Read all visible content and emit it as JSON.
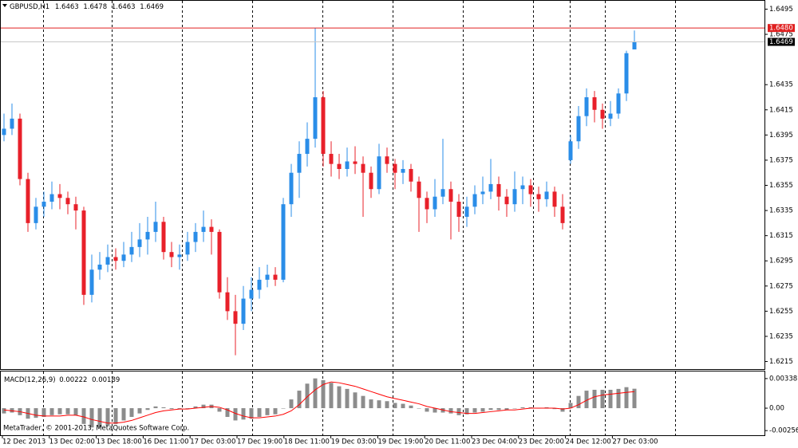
{
  "chart_data": [
    {
      "type": "candlestick",
      "symbol": "GBPUSD,H1",
      "ohlc": [
        1.6463,
        1.6478,
        1.6463,
        1.6469
      ],
      "up_color": "#2a8de8",
      "down_color": "#e8202a",
      "ylim": [
        1.6209,
        1.6501
      ],
      "yticks": [
        1.6495,
        1.6475,
        1.6435,
        1.6415,
        1.6395,
        1.6375,
        1.6355,
        1.6335,
        1.6315,
        1.6295,
        1.6275,
        1.6255,
        1.6235,
        1.6215
      ],
      "grid": false,
      "ask": {
        "value": 1.648,
        "label": "1.6480"
      },
      "ask_color": "#e02020",
      "bid": 1.6469,
      "bid_color": "#c8c8c8",
      "candles": [
        [
          1.6395,
          1.6412,
          1.639,
          1.64
        ],
        [
          1.64,
          1.642,
          1.6395,
          1.6408
        ],
        [
          1.6408,
          1.6412,
          1.6355,
          1.636
        ],
        [
          1.636,
          1.6365,
          1.6318,
          1.6325
        ],
        [
          1.6325,
          1.6345,
          1.632,
          1.6338
        ],
        [
          1.6338,
          1.635,
          1.633,
          1.6342
        ],
        [
          1.6342,
          1.6358,
          1.6336,
          1.6348
        ],
        [
          1.6348,
          1.6356,
          1.6336,
          1.6345
        ],
        [
          1.6345,
          1.635,
          1.6332,
          1.634
        ],
        [
          1.634,
          1.6346,
          1.632,
          1.6335
        ],
        [
          1.6335,
          1.6338,
          1.626,
          1.6268
        ],
        [
          1.6268,
          1.63,
          1.6262,
          1.6288
        ],
        [
          1.6288,
          1.6302,
          1.628,
          1.6292
        ],
        [
          1.6292,
          1.6308,
          1.6286,
          1.6298
        ],
        [
          1.6298,
          1.6305,
          1.6288,
          1.6295
        ],
        [
          1.6295,
          1.631,
          1.629,
          1.63
        ],
        [
          1.63,
          1.6318,
          1.6294,
          1.6306
        ],
        [
          1.6306,
          1.6325,
          1.6298,
          1.6312
        ],
        [
          1.6312,
          1.633,
          1.63,
          1.6318
        ],
        [
          1.6318,
          1.6342,
          1.631,
          1.6326
        ],
        [
          1.6326,
          1.633,
          1.6296,
          1.6302
        ],
        [
          1.6302,
          1.631,
          1.629,
          1.6298
        ],
        [
          1.6298,
          1.6308,
          1.6288,
          1.63
        ],
        [
          1.63,
          1.6318,
          1.6295,
          1.631
        ],
        [
          1.631,
          1.6325,
          1.6302,
          1.6318
        ],
        [
          1.6318,
          1.6335,
          1.631,
          1.6322
        ],
        [
          1.6322,
          1.6328,
          1.63,
          1.6318
        ],
        [
          1.6318,
          1.632,
          1.6265,
          1.627
        ],
        [
          1.627,
          1.6282,
          1.6248,
          1.6255
        ],
        [
          1.6255,
          1.6268,
          1.622,
          1.6245
        ],
        [
          1.6245,
          1.6275,
          1.624,
          1.6265
        ],
        [
          1.6265,
          1.6282,
          1.6255,
          1.6272
        ],
        [
          1.6272,
          1.629,
          1.6265,
          1.628
        ],
        [
          1.628,
          1.6292,
          1.6274,
          1.6284
        ],
        [
          1.6284,
          1.629,
          1.6275,
          1.628
        ],
        [
          1.628,
          1.6345,
          1.6278,
          1.634
        ],
        [
          1.634,
          1.6372,
          1.633,
          1.6365
        ],
        [
          1.6365,
          1.639,
          1.6345,
          1.638
        ],
        [
          1.638,
          1.6405,
          1.637,
          1.6392
        ],
        [
          1.6392,
          1.648,
          1.6385,
          1.6425
        ],
        [
          1.6425,
          1.643,
          1.637,
          1.638
        ],
        [
          1.638,
          1.639,
          1.6362,
          1.6372
        ],
        [
          1.6372,
          1.638,
          1.636,
          1.6368
        ],
        [
          1.6368,
          1.6385,
          1.6362,
          1.6374
        ],
        [
          1.6374,
          1.6386,
          1.6364,
          1.6372
        ],
        [
          1.6372,
          1.6378,
          1.633,
          1.6365
        ],
        [
          1.6365,
          1.637,
          1.6345,
          1.6352
        ],
        [
          1.6352,
          1.6388,
          1.6348,
          1.6378
        ],
        [
          1.6378,
          1.6385,
          1.6365,
          1.6372
        ],
        [
          1.6372,
          1.6376,
          1.6352,
          1.6365
        ],
        [
          1.6365,
          1.6375,
          1.6356,
          1.6368
        ],
        [
          1.6368,
          1.6372,
          1.635,
          1.6358
        ],
        [
          1.6358,
          1.6362,
          1.6318,
          1.6345
        ],
        [
          1.6345,
          1.635,
          1.6325,
          1.6336
        ],
        [
          1.6336,
          1.636,
          1.633,
          1.6346
        ],
        [
          1.6346,
          1.6392,
          1.634,
          1.6352
        ],
        [
          1.6352,
          1.6358,
          1.6312,
          1.6342
        ],
        [
          1.6342,
          1.6348,
          1.6318,
          1.633
        ],
        [
          1.633,
          1.6346,
          1.6322,
          1.6338
        ],
        [
          1.6338,
          1.6355,
          1.6332,
          1.6348
        ],
        [
          1.6348,
          1.6362,
          1.634,
          1.635
        ],
        [
          1.635,
          1.6376,
          1.6344,
          1.6356
        ],
        [
          1.6356,
          1.6362,
          1.6335,
          1.6346
        ],
        [
          1.6346,
          1.6352,
          1.633,
          1.634
        ],
        [
          1.634,
          1.6366,
          1.6334,
          1.6352
        ],
        [
          1.6352,
          1.6362,
          1.634,
          1.6355
        ],
        [
          1.6355,
          1.636,
          1.6338,
          1.6348
        ],
        [
          1.6348,
          1.6354,
          1.6334,
          1.6344
        ],
        [
          1.6344,
          1.6358,
          1.6338,
          1.635
        ],
        [
          1.635,
          1.6354,
          1.633,
          1.6338
        ],
        [
          1.6338,
          1.6348,
          1.632,
          1.6325
        ],
        [
          1.6375,
          1.6395,
          1.6372,
          1.639
        ],
        [
          1.639,
          1.6418,
          1.6384,
          1.641
        ],
        [
          1.641,
          1.6432,
          1.6402,
          1.6425
        ],
        [
          1.6425,
          1.643,
          1.6405,
          1.6415
        ],
        [
          1.6415,
          1.642,
          1.64,
          1.6408
        ],
        [
          1.6408,
          1.6422,
          1.6402,
          1.6412
        ],
        [
          1.6412,
          1.6432,
          1.6408,
          1.6428
        ],
        [
          1.6428,
          1.6462,
          1.6422,
          1.646
        ],
        [
          1.6463,
          1.6478,
          1.6463,
          1.6469
        ]
      ]
    },
    {
      "type": "macd",
      "title": "MACD(12,26,9)",
      "current": [
        0.00222,
        0.00189
      ],
      "ylim": [
        -0.003,
        0.0041
      ],
      "yticks": [
        0.00338,
        {
          "value": 0,
          "label": "0.00"
        },
        -0.00256
      ],
      "histogram": {
        "color": "#8c8c8c",
        "values": [
          -0.0006,
          -0.0005,
          -0.0008,
          -0.0012,
          -0.0011,
          -0.001,
          -0.0008,
          -0.0007,
          -0.0007,
          -0.0008,
          -0.0018,
          -0.0022,
          -0.0022,
          -0.002,
          -0.0018,
          -0.0014,
          -0.001,
          -0.0006,
          -0.0002,
          0.0002,
          0.0001,
          -0.0001,
          -0.0001,
          0.0,
          0.0002,
          0.0004,
          0.0004,
          -0.0004,
          -0.001,
          -0.0014,
          -0.0013,
          -0.0012,
          -0.001,
          -0.0008,
          -0.0007,
          0.0,
          0.001,
          0.002,
          0.0028,
          0.0034,
          0.0032,
          0.0029,
          0.0025,
          0.0022,
          0.0018,
          0.0014,
          0.001,
          0.0009,
          0.0008,
          0.0006,
          0.0005,
          0.0003,
          0.0,
          -0.0004,
          -0.0005,
          -0.0005,
          -0.0006,
          -0.0008,
          -0.0007,
          -0.0005,
          -0.0004,
          -0.0002,
          -0.0002,
          -0.0002,
          0.0,
          0.0001,
          0.0001,
          0.0,
          0.0001,
          -0.0001,
          -0.0004,
          0.0006,
          0.0014,
          0.002,
          0.0021,
          0.0021,
          0.0021,
          0.0022,
          0.0024,
          0.00222
        ]
      },
      "signal": {
        "color": "#ff0000",
        "values": [
          -0.0002,
          -0.0003,
          -0.0004,
          -0.0006,
          -0.0008,
          -0.0009,
          -0.0009,
          -0.0009,
          -0.0008,
          -0.0008,
          -0.001,
          -0.0013,
          -0.0015,
          -0.0017,
          -0.0017,
          -0.0016,
          -0.0014,
          -0.0011,
          -0.0008,
          -0.0005,
          -0.0003,
          -0.0002,
          -0.0001,
          -0.0001,
          0.0,
          0.0001,
          0.0002,
          0.0001,
          -0.0002,
          -0.0006,
          -0.0009,
          -0.0011,
          -0.0011,
          -0.001,
          -0.0009,
          -0.0007,
          -0.0003,
          0.0004,
          0.0013,
          0.0021,
          0.0027,
          0.003,
          0.0029,
          0.0027,
          0.0025,
          0.0022,
          0.0019,
          0.0016,
          0.0013,
          0.0011,
          0.0009,
          0.0007,
          0.0005,
          0.0002,
          0.0,
          -0.0002,
          -0.0004,
          -0.0005,
          -0.0006,
          -0.0006,
          -0.0005,
          -0.0004,
          -0.0003,
          -0.0002,
          -0.0002,
          -0.0001,
          0.0,
          0.0,
          0.0,
          0.0,
          -0.0001,
          0.0,
          0.0004,
          0.0009,
          0.0013,
          0.0015,
          0.0016,
          0.0017,
          0.0018,
          0.00189
        ]
      },
      "time_labels": [
        "12 Dec 2013",
        "13 Dec 02:00",
        "13 Dec 18:00",
        "16 Dec 11:00",
        "17 Dec 03:00",
        "17 Dec 19:00",
        "18 Dec 11:00",
        "19 Dec 03:00",
        "19 Dec 19:00",
        "20 Dec 11:00",
        "23 Dec 04:00",
        "23 Dec 20:00",
        "24 Dec 12:00",
        "27 Dec 03:00"
      ]
    }
  ],
  "footer": "MetaTrader, © 2001-2013, MetaQuotes Software Corp."
}
